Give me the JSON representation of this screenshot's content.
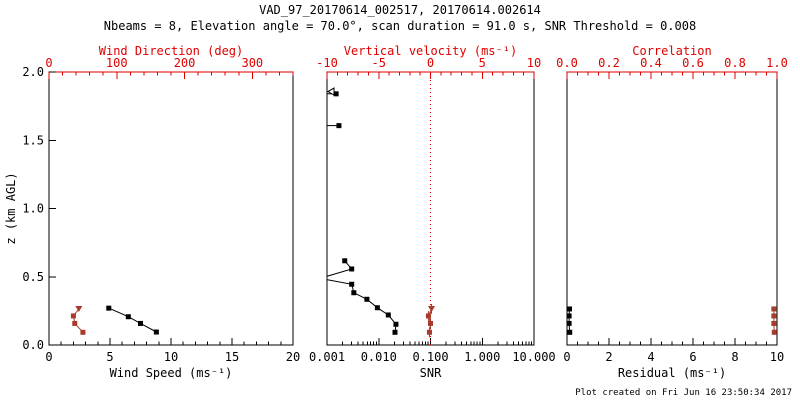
{
  "header": {
    "title": "VAD_97_20170614_002517, 20170614.002614",
    "subtitle": "Nbeams = 8, Elevation angle = 70.0°, scan duration = 91.0 s, SNR Threshold = 0.008"
  },
  "footer": {
    "created": "Plot created on Fri Jun 16 23:50:34 2017"
  },
  "colors": {
    "axis_red": "#e00000",
    "data_red": "#a83c2c",
    "black": "#000000",
    "background": "#ffffff"
  },
  "chart_data": [
    {
      "type": "scatter",
      "name": "wind",
      "x_bottom": {
        "label": "Wind Speed (ms⁻¹)",
        "range": [
          0,
          20
        ],
        "tick_values": [
          0,
          5,
          10,
          15,
          20
        ],
        "tick_labels": [
          "0",
          "5",
          "10",
          "15",
          "20"
        ],
        "minor_step": 1
      },
      "x_top": {
        "label": "Wind Direction (deg)",
        "range": [
          0,
          360
        ],
        "tick_values": [
          0,
          100,
          200,
          300
        ],
        "tick_labels": [
          "0",
          "100",
          "200",
          "300"
        ],
        "minor_step": 20
      },
      "y": {
        "label": "z (km AGL)",
        "range": [
          0,
          2
        ],
        "tick_values": [
          0,
          0.5,
          1,
          1.5,
          2
        ],
        "tick_labels": [
          "0.0",
          "0.5",
          "1.0",
          "1.5",
          "2.0"
        ]
      },
      "series": [
        {
          "name": "wind-speed",
          "axis": "bottom",
          "color": "black",
          "marker": "square",
          "connect": true,
          "points": [
            [
              4.9,
              0.27
            ],
            [
              6.5,
              0.207
            ],
            [
              7.5,
              0.158
            ],
            [
              8.8,
              0.095
            ]
          ]
        },
        {
          "name": "wind-direction",
          "axis": "top",
          "color": "red",
          "marker": "square",
          "first_marker": "triangle-down",
          "connect": true,
          "points": [
            [
              44,
              0.264
            ],
            [
              36,
              0.213
            ],
            [
              38,
              0.158
            ],
            [
              50,
              0.093
            ]
          ]
        }
      ]
    },
    {
      "type": "scatter",
      "name": "snr",
      "x_bottom": {
        "label": "SNR",
        "scale": "log",
        "range": [
          0.001,
          10
        ],
        "tick_values": [
          0.001,
          0.01,
          0.1,
          1,
          10
        ],
        "tick_labels": [
          "0.001",
          "0.010",
          "0.100",
          "1.000",
          "10.000"
        ],
        "minor_step": "log"
      },
      "x_top": {
        "label": "Vertical velocity (ms⁻¹)",
        "range": [
          -10,
          10
        ],
        "tick_values": [
          -10,
          -5,
          0,
          5,
          10
        ],
        "tick_labels": [
          "-10",
          "-5",
          "0",
          "5",
          "10"
        ],
        "minor_step": 1,
        "zero_line": true
      },
      "y": {
        "range": [
          0,
          2
        ]
      },
      "series": [
        {
          "name": "snr-profile",
          "axis": "bottom",
          "color": "black",
          "marker": "square",
          "points": [
            [
              0.0015,
              1.84
            ],
            [
              0.0017,
              1.607
            ],
            [
              0.0022,
              0.617
            ],
            [
              0.003,
              0.557
            ],
            [
              0.003,
              0.445
            ],
            [
              0.0033,
              0.383
            ],
            [
              0.0059,
              0.335
            ],
            [
              0.0094,
              0.273
            ],
            [
              0.0153,
              0.22
            ],
            [
              0.0215,
              0.152
            ],
            [
              0.0206,
              0.093
            ]
          ],
          "polylines": [
            [
              [
                null,
                1.84
              ],
              [
                0.0015,
                1.84
              ]
            ],
            [
              [
                null,
                1.607
              ],
              [
                0.0017,
                1.607
              ]
            ],
            [
              [
                0.0022,
                0.617
              ],
              [
                0.003,
                0.557
              ],
              [
                null,
                0.505
              ]
            ],
            [
              [
                null,
                0.478
              ],
              [
                0.003,
                0.445
              ],
              [
                0.0033,
                0.383
              ],
              [
                0.0059,
                0.335
              ],
              [
                0.0094,
                0.273
              ],
              [
                0.0153,
                0.22
              ],
              [
                0.0215,
                0.152
              ],
              [
                0.0206,
                0.093
              ]
            ]
          ],
          "offscale_marker_z": 1.857
        },
        {
          "name": "vertical-velocity",
          "axis": "top",
          "color": "red",
          "marker": "square",
          "first_marker": "triangle-down",
          "error_bars": true,
          "connect": true,
          "points": [
            [
              0.1,
              0.264
            ],
            [
              -0.2,
              0.213
            ],
            [
              0.0,
              0.158
            ],
            [
              -0.1,
              0.093
            ]
          ]
        }
      ]
    },
    {
      "type": "scatter",
      "name": "residual",
      "x_bottom": {
        "label": "Residual (ms⁻¹)",
        "range": [
          0,
          10
        ],
        "tick_values": [
          0,
          2,
          4,
          6,
          8,
          10
        ],
        "tick_labels": [
          "0",
          "2",
          "4",
          "6",
          "8",
          "10"
        ],
        "minor_step": 0.5
      },
      "x_top": {
        "label": "Correlation",
        "range": [
          0,
          1
        ],
        "tick_values": [
          0,
          0.2,
          0.4,
          0.6,
          0.8,
          1
        ],
        "tick_labels": [
          "0.0",
          "0.2",
          "0.4",
          "0.6",
          "0.8",
          "1.0"
        ],
        "minor_step": 0.05
      },
      "y": {
        "range": [
          0,
          2
        ]
      },
      "series": [
        {
          "name": "residual",
          "axis": "bottom",
          "color": "black",
          "marker": "square",
          "connect": true,
          "points": [
            [
              0.12,
              0.264
            ],
            [
              0.1,
              0.213
            ],
            [
              0.1,
              0.158
            ],
            [
              0.13,
              0.093
            ]
          ]
        },
        {
          "name": "correlation",
          "axis": "top",
          "color": "red",
          "marker": "square",
          "connect": true,
          "points": [
            [
              0.985,
              0.264
            ],
            [
              0.985,
              0.213
            ],
            [
              0.985,
              0.158
            ],
            [
              0.987,
              0.093
            ]
          ]
        }
      ]
    }
  ]
}
